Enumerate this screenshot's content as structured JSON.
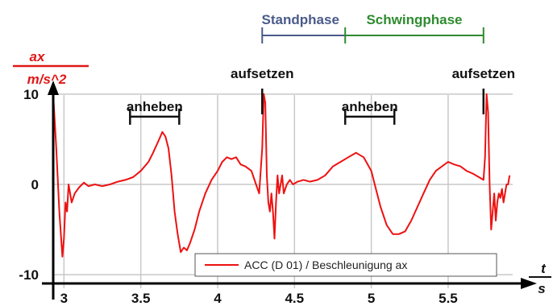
{
  "chart_data": {
    "type": "line",
    "xlim": [
      2.93,
      5.92
    ],
    "ylim": [
      -11.5,
      11.5
    ],
    "x_ticks": [
      3,
      3.5,
      4,
      4.5,
      5,
      5.5
    ],
    "x_tick_labels": [
      "3",
      "3.5",
      "4",
      "4.5",
      "5",
      "5.5"
    ],
    "y_ticks": [
      -10,
      0,
      10
    ],
    "y_tick_labels": [
      "-10",
      "0",
      "10"
    ],
    "grid": true,
    "y_unit_top": "ax",
    "y_unit_bottom": "m/s^2",
    "x_unit_top": "t",
    "x_unit_bottom": "s",
    "legend": {
      "placement": "bottom-right",
      "label": "ACC (D 01) / Beschleunigung ax"
    },
    "colors": {
      "series": "#ee1111",
      "grid": "#c8c8c8",
      "axis": "#000000",
      "stand_phase": "#4a5a8a",
      "swing_phase": "#2e8b2e",
      "unit": "#e01818"
    },
    "series": [
      {
        "x": [
          2.93,
          2.95,
          2.97,
          2.99,
          3.0,
          3.01,
          3.02,
          3.03,
          3.05,
          3.07,
          3.1,
          3.13,
          3.16,
          3.2,
          3.25,
          3.3,
          3.35,
          3.4,
          3.45,
          3.5,
          3.55,
          3.58,
          3.62,
          3.64,
          3.66,
          3.68,
          3.7,
          3.72,
          3.74,
          3.76,
          3.78,
          3.8,
          3.82,
          3.85,
          3.88,
          3.92,
          3.96,
          4.0,
          4.03,
          4.06,
          4.09,
          4.12,
          4.15,
          4.18,
          4.22,
          4.25,
          4.27,
          4.29,
          4.3,
          4.31,
          4.32,
          4.33,
          4.34,
          4.35,
          4.36,
          4.37,
          4.38,
          4.39,
          4.4,
          4.41,
          4.42,
          4.43,
          4.45,
          4.47,
          4.49,
          4.52,
          4.56,
          4.6,
          4.65,
          4.7,
          4.75,
          4.8,
          4.85,
          4.9,
          4.95,
          5.0,
          5.03,
          5.06,
          5.1,
          5.14,
          5.18,
          5.22,
          5.26,
          5.3,
          5.34,
          5.38,
          5.42,
          5.46,
          5.5,
          5.54,
          5.58,
          5.62,
          5.66,
          5.7,
          5.73,
          5.74,
          5.75,
          5.76,
          5.77,
          5.78,
          5.79,
          5.8,
          5.81,
          5.82,
          5.83,
          5.84,
          5.85,
          5.86,
          5.87,
          5.88,
          5.89,
          5.9
        ],
        "y": [
          10,
          4,
          -3,
          -8,
          -6,
          -2,
          -3,
          0,
          -2,
          -1,
          -0.3,
          0.2,
          -0.2,
          0,
          -0.2,
          0,
          0.3,
          0.5,
          0.8,
          1.5,
          2.5,
          3.5,
          5,
          5.8,
          5.3,
          4,
          1,
          -3,
          -5.5,
          -7.5,
          -7,
          -7.3,
          -6.5,
          -5,
          -3,
          -1,
          0.5,
          1.5,
          2.5,
          3,
          2.8,
          3,
          2.2,
          2,
          1.5,
          0,
          -1,
          4,
          10,
          9,
          1,
          -2,
          -3,
          -1,
          -3,
          -6,
          -2,
          1,
          -1,
          0,
          1,
          -1,
          0,
          0.5,
          0,
          0.3,
          0.5,
          0.3,
          0.5,
          1,
          2,
          2.5,
          3,
          3.5,
          3,
          1.5,
          -0.5,
          -2.5,
          -4.5,
          -5.5,
          -5.5,
          -5.2,
          -4,
          -2.5,
          -1,
          0.5,
          1.5,
          2,
          2.5,
          2.2,
          2,
          1.5,
          1.2,
          0.8,
          0.5,
          3,
          10,
          8,
          0,
          -5,
          -3,
          -1,
          -4,
          -2,
          -1,
          -1.5,
          -0.5,
          -2,
          -1,
          0,
          0,
          1
        ]
      }
    ]
  },
  "annotations": {
    "lift_1": {
      "label": "anheben",
      "x_start": 3.43,
      "x_end": 3.75,
      "y": 7.5
    },
    "lift_2": {
      "label": "anheben",
      "x_start": 4.83,
      "x_end": 5.15,
      "y": 7.5
    },
    "contact_1": {
      "label": "aufsetzen",
      "x": 4.29
    },
    "contact_2": {
      "label": "aufsetzen",
      "x": 5.73
    }
  },
  "phases": {
    "stand": {
      "label": "Standphase",
      "x_start": 4.29,
      "x_end": 4.83
    },
    "swing": {
      "label": "Schwingphase",
      "x_start": 4.83,
      "x_end": 5.73
    }
  }
}
